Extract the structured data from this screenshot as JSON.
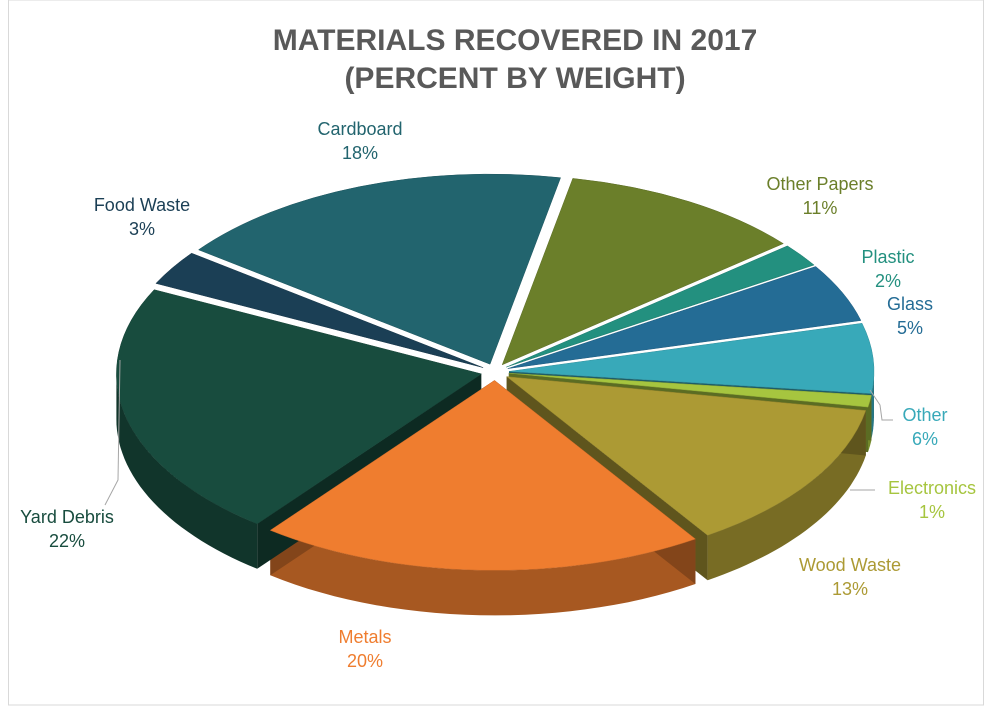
{
  "chart_data": {
    "type": "pie3d",
    "title": [
      "MATERIALS RECOVERED IN 2017",
      "(PERCENT BY WEIGHT)"
    ],
    "categories": [
      "Cardboard",
      "Other Papers",
      "Plastic",
      "Glass",
      "Other",
      "Electronics",
      "Wood Waste",
      "Metals",
      "Yard Debris",
      "Food Waste"
    ],
    "values": [
      18,
      11,
      2,
      5,
      6,
      1,
      13,
      20,
      22,
      3
    ],
    "value_labels": [
      "18%",
      "11%",
      "2%",
      "5%",
      "6%",
      "1%",
      "13%",
      "20%",
      "22%",
      "3%"
    ],
    "colors": [
      "#22646e",
      "#6b7f2a",
      "#23907f",
      "#246c95",
      "#38a9b9",
      "#a6c53f",
      "#ac9a34",
      "#ef7d2f",
      "#184c3e",
      "#1b3f55"
    ]
  }
}
